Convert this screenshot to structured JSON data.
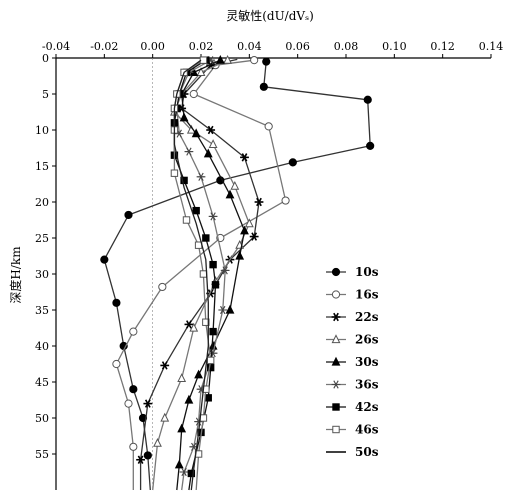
{
  "chart_data": {
    "type": "line",
    "title": "",
    "xlabel": "灵敏性(dU/dVₛ)",
    "ylabel": "深度H/km",
    "xlim": [
      -0.04,
      0.14
    ],
    "ylim": [
      0,
      60
    ],
    "x_axis_position": "top",
    "y_axis_inverted": true,
    "xticks": [
      "-0.04",
      "-0.02",
      "0.00",
      "0.02",
      "0.04",
      "0.06",
      "0.08",
      "0.10",
      "0.12",
      "0.14"
    ],
    "yticks": [
      "0",
      "5",
      "10",
      "15",
      "20",
      "25",
      "30",
      "35",
      "40",
      "45",
      "50",
      "55"
    ],
    "grid": false,
    "legend_position": "right",
    "series": [
      {
        "name": "10s",
        "marker": "filled-circle",
        "color": "#333333",
        "points": [
          [
            0.047,
            0.5
          ],
          [
            0.046,
            4
          ],
          [
            0.089,
            5.8
          ],
          [
            0.09,
            12.2
          ],
          [
            0.058,
            14.5
          ],
          [
            0.028,
            17
          ],
          [
            -0.01,
            21.8
          ],
          [
            -0.02,
            28
          ],
          [
            -0.015,
            34
          ],
          [
            -0.012,
            40
          ],
          [
            -0.008,
            46
          ],
          [
            -0.004,
            50
          ],
          [
            -0.002,
            55.2
          ],
          [
            -0.001,
            60
          ]
        ]
      },
      {
        "name": "16s",
        "marker": "open-circle",
        "color": "#777777",
        "points": [
          [
            0.042,
            0.3
          ],
          [
            0.026,
            1
          ],
          [
            0.017,
            5
          ],
          [
            0.048,
            9.5
          ],
          [
            0.055,
            19.8
          ],
          [
            0.028,
            25
          ],
          [
            0.004,
            31.8
          ],
          [
            -0.008,
            38
          ],
          [
            -0.015,
            42.5
          ],
          [
            -0.01,
            48
          ],
          [
            -0.008,
            54
          ],
          [
            -0.008,
            60
          ]
        ]
      },
      {
        "name": "22s",
        "marker": "asterisk",
        "color": "#333333",
        "points": [
          [
            0.035,
            0.2
          ],
          [
            0.024,
            1
          ],
          [
            0.013,
            5
          ],
          [
            0.012,
            7
          ],
          [
            0.024,
            10
          ],
          [
            0.038,
            13.8
          ],
          [
            0.044,
            20
          ],
          [
            0.042,
            24.8
          ],
          [
            0.032,
            28
          ],
          [
            0.024,
            32.7
          ],
          [
            0.015,
            37
          ],
          [
            0.005,
            42.7
          ],
          [
            -0.002,
            48
          ],
          [
            -0.005,
            55.8
          ],
          [
            -0.005,
            60
          ]
        ]
      },
      {
        "name": "26s",
        "marker": "open-triangle",
        "color": "#777777",
        "points": [
          [
            0.031,
            0.3
          ],
          [
            0.02,
            2
          ],
          [
            0.012,
            5
          ],
          [
            0.009,
            7.5
          ],
          [
            0.016,
            10
          ],
          [
            0.025,
            12
          ],
          [
            0.034,
            17.8
          ],
          [
            0.04,
            23
          ],
          [
            0.036,
            26
          ],
          [
            0.026,
            31
          ],
          [
            0.017,
            37.5
          ],
          [
            0.012,
            44.5
          ],
          [
            0.005,
            50
          ],
          [
            0.002,
            53.5
          ],
          [
            0.0,
            60
          ]
        ]
      },
      {
        "name": "30s",
        "marker": "filled-triangle",
        "color": "#111111",
        "points": [
          [
            0.028,
            0.3
          ],
          [
            0.017,
            2
          ],
          [
            0.012,
            5
          ],
          [
            0.013,
            8.3
          ],
          [
            0.018,
            10.5
          ],
          [
            0.023,
            13.3
          ],
          [
            0.032,
            19
          ],
          [
            0.038,
            24
          ],
          [
            0.036,
            27.5
          ],
          [
            0.032,
            35
          ],
          [
            0.025,
            40
          ],
          [
            0.019,
            44
          ],
          [
            0.015,
            47.5
          ],
          [
            0.012,
            51.5
          ],
          [
            0.011,
            56.5
          ],
          [
            0.01,
            60
          ]
        ]
      },
      {
        "name": "36s",
        "marker": "double-asterisk",
        "color": "#777777",
        "points": [
          [
            0.024,
            0.3
          ],
          [
            0.015,
            2
          ],
          [
            0.011,
            5
          ],
          [
            0.01,
            7
          ],
          [
            0.011,
            10.5
          ],
          [
            0.015,
            13
          ],
          [
            0.02,
            16.5
          ],
          [
            0.025,
            22
          ],
          [
            0.03,
            29.5
          ],
          [
            0.029,
            35
          ],
          [
            0.025,
            41
          ],
          [
            0.02,
            46
          ],
          [
            0.019,
            50.5
          ],
          [
            0.017,
            54
          ],
          [
            0.013,
            57.5
          ],
          [
            0.012,
            60
          ]
        ]
      },
      {
        "name": "42s",
        "marker": "filled-square",
        "color": "#111111",
        "points": [
          [
            0.022,
            0.3
          ],
          [
            0.014,
            2
          ],
          [
            0.011,
            5
          ],
          [
            0.01,
            7
          ],
          [
            0.009,
            9
          ],
          [
            0.009,
            13.5
          ],
          [
            0.013,
            17
          ],
          [
            0.018,
            21.2
          ],
          [
            0.022,
            25
          ],
          [
            0.025,
            28.7
          ],
          [
            0.026,
            31.5
          ],
          [
            0.025,
            38
          ],
          [
            0.024,
            43
          ],
          [
            0.023,
            47.2
          ],
          [
            0.02,
            52
          ],
          [
            0.016,
            57.7
          ],
          [
            0.015,
            60
          ]
        ]
      },
      {
        "name": "46s",
        "marker": "open-square",
        "color": "#777777",
        "points": [
          [
            0.021,
            0.3
          ],
          [
            0.013,
            2
          ],
          [
            0.01,
            5
          ],
          [
            0.009,
            7
          ],
          [
            0.009,
            10
          ],
          [
            0.009,
            16
          ],
          [
            0.014,
            22.5
          ],
          [
            0.019,
            26
          ],
          [
            0.021,
            30
          ],
          [
            0.022,
            36.7
          ],
          [
            0.024,
            42
          ],
          [
            0.022,
            46
          ],
          [
            0.021,
            50
          ],
          [
            0.019,
            55
          ],
          [
            0.018,
            60
          ]
        ]
      },
      {
        "name": "50s",
        "marker": "line",
        "color": "#222222",
        "points": [
          [
            0.02,
            0.3
          ],
          [
            0.013,
            2
          ],
          [
            0.01,
            5
          ],
          [
            0.009,
            7
          ],
          [
            0.009,
            12
          ],
          [
            0.013,
            18
          ],
          [
            0.018,
            23
          ],
          [
            0.022,
            28
          ],
          [
            0.023,
            34
          ],
          [
            0.023,
            40
          ],
          [
            0.021,
            46
          ],
          [
            0.019,
            52
          ],
          [
            0.017,
            57
          ],
          [
            0.016,
            60
          ]
        ]
      }
    ]
  }
}
